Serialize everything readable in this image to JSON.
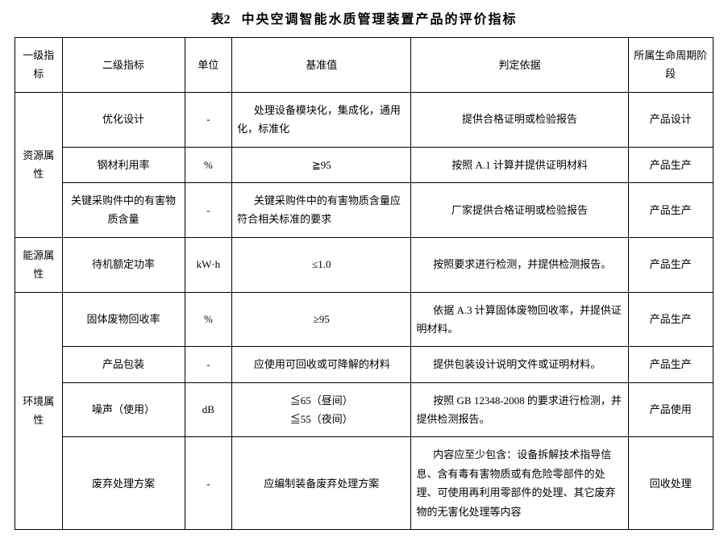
{
  "title_prefix": "表2",
  "title_text": "中央空调智能水质管理装置产品的评价指标",
  "headers": {
    "c1": "一级指标",
    "c2": "二级指标",
    "c3": "单位",
    "c4": "基准值",
    "c5": "判定依据",
    "c6": "所属生命周期阶段"
  },
  "groups": [
    {
      "name": "资源属性",
      "rows": [
        {
          "l2": "优化设计",
          "unit": "-",
          "base": "处理设备模块化，集成化，通用化，标准化",
          "judge": "提供合格证明或检验报告",
          "phase": "产品设计",
          "base_left": true
        },
        {
          "l2": "钢材利用率",
          "unit": "%",
          "base": "≧95",
          "judge": "按照 A.1 计算并提供证明材料",
          "phase": "产品生产"
        },
        {
          "l2": "关键采购件中的有害物质含量",
          "unit": "-",
          "base": "关键采购件中的有害物质含量应符合相关标准的要求",
          "judge": "厂家提供合格证明或检验报告",
          "phase": "产品生产",
          "base_left": true
        }
      ]
    },
    {
      "name": "能源属性",
      "rows": [
        {
          "l2": "待机额定功率",
          "unit": "kW·h",
          "base": "≤1.0",
          "judge": "按照要求进行检测，并提供检测报告。",
          "phase": "产品生产",
          "judge_left": true
        }
      ]
    },
    {
      "name": "环境属性",
      "rows": [
        {
          "l2": "固体废物回收率",
          "unit": "%",
          "base": "≥95",
          "judge": "依据 A.3 计算固体废物回收率，并提供证明材料。",
          "phase": "产品生产",
          "judge_left": true
        },
        {
          "l2": "产品包装",
          "unit": "-",
          "base": "应使用可回收或可降解的材料",
          "judge": "提供包装设计说明文件或证明材料。",
          "phase": "产品生产",
          "base_left": true,
          "judge_left": true
        },
        {
          "l2": "噪声（使用）",
          "unit": "dB",
          "base": "≦65（昼间）\n≦55（夜间）",
          "judge": "按照 GB 12348-2008 的要求进行检测，并提供检测报告。",
          "phase": "产品使用",
          "judge_left": true
        },
        {
          "l2": "废弃处理方案",
          "unit": "-",
          "base": "应编制装备废弃处理方案",
          "judge": "内容应至少包含：设备拆解技术指导信息、含有毒有害物质或有危险零部件的处理、可使用再利用零部件的处理、其它废弃物的无害化处理等内容",
          "phase": "回收处理",
          "judge_left": true
        }
      ]
    }
  ]
}
